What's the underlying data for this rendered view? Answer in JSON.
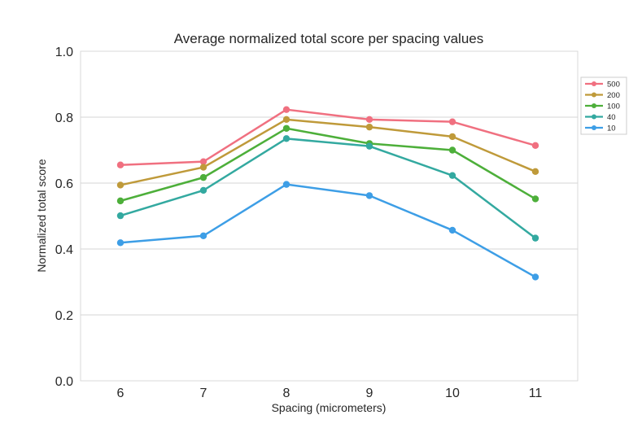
{
  "chart_data": {
    "type": "line",
    "title": "Average normalized total score per spacing values",
    "xlabel": "Spacing (micrometers)",
    "ylabel": "Normalized total score",
    "categories": [
      "6",
      "7",
      "8",
      "9",
      "10",
      "11"
    ],
    "ylim": [
      0,
      1.0
    ],
    "yticks": [
      "0.0",
      "0.2",
      "0.4",
      "0.6",
      "0.8",
      "1.0"
    ],
    "grid": "horizontal",
    "legend_position": "outside-top-right",
    "series": [
      {
        "name": "500",
        "color": "#f07080",
        "values": [
          0.655,
          0.665,
          0.823,
          0.793,
          0.786,
          0.714
        ]
      },
      {
        "name": "200",
        "color": "#bf9a3a",
        "values": [
          0.594,
          0.648,
          0.793,
          0.77,
          0.741,
          0.635
        ]
      },
      {
        "name": "100",
        "color": "#4daf3a",
        "values": [
          0.546,
          0.617,
          0.766,
          0.72,
          0.7,
          0.552
        ]
      },
      {
        "name": "40",
        "color": "#33a9a0",
        "values": [
          0.501,
          0.578,
          0.735,
          0.712,
          0.623,
          0.433
        ]
      },
      {
        "name": "10",
        "color": "#3d9ee6",
        "values": [
          0.419,
          0.44,
          0.596,
          0.562,
          0.457,
          0.315
        ]
      }
    ]
  }
}
